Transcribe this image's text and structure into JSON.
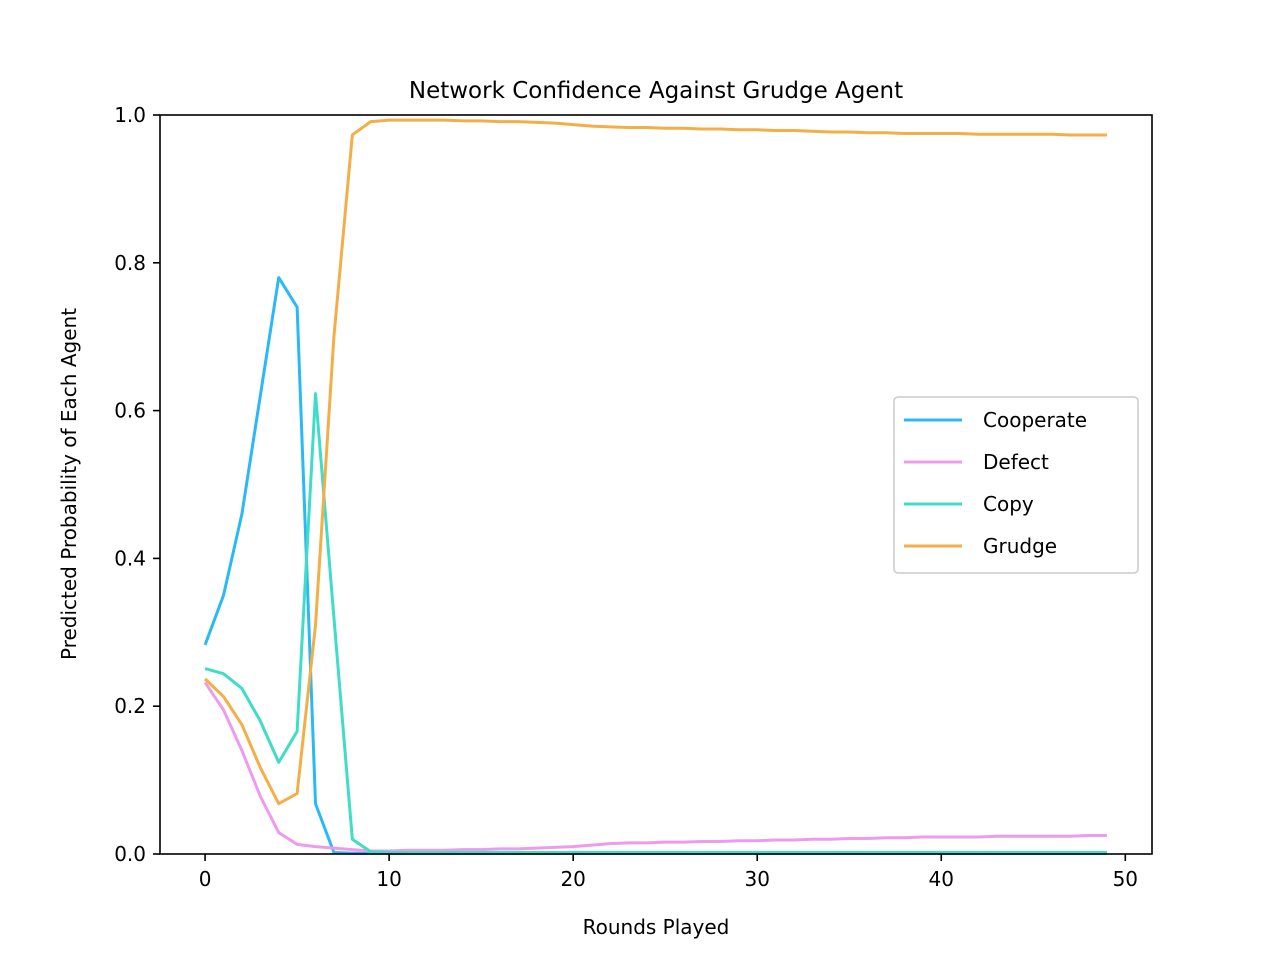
{
  "chart_data": {
    "type": "line",
    "title": "Network Confidence Against Grudge Agent",
    "xlabel": "Rounds Played",
    "ylabel": "Predicted Probability of Each Agent",
    "xlim": [
      -2.45,
      51.45
    ],
    "ylim": [
      0.0,
      1.0
    ],
    "xticks": [
      0,
      10,
      20,
      30,
      40,
      50
    ],
    "xtick_labels": [
      "0",
      "10",
      "20",
      "30",
      "40",
      "50"
    ],
    "yticks": [
      0.0,
      0.2,
      0.4,
      0.6,
      0.8,
      1.0
    ],
    "ytick_labels": [
      "0.0",
      "0.2",
      "0.4",
      "0.6",
      "0.8",
      "1.0"
    ],
    "grid": false,
    "legend_position": "center-right",
    "x": [
      0,
      1,
      2,
      3,
      4,
      5,
      6,
      7,
      8,
      9,
      10,
      11,
      12,
      13,
      14,
      15,
      16,
      17,
      18,
      19,
      20,
      21,
      22,
      23,
      24,
      25,
      26,
      27,
      28,
      29,
      30,
      31,
      32,
      33,
      34,
      35,
      36,
      37,
      38,
      39,
      40,
      41,
      42,
      43,
      44,
      45,
      46,
      47,
      48,
      49
    ],
    "series": [
      {
        "name": "Cooperate",
        "color": "#29b9f5",
        "values": [
          0.283,
          0.35,
          0.46,
          0.62,
          0.78,
          0.74,
          0.068,
          0.002,
          0.001,
          0.001,
          0.001,
          0.001,
          0.001,
          0.001,
          0.001,
          0.001,
          0.001,
          0.001,
          0.001,
          0.001,
          0.001,
          0.001,
          0.001,
          0.001,
          0.001,
          0.001,
          0.001,
          0.001,
          0.001,
          0.001,
          0.001,
          0.001,
          0.001,
          0.001,
          0.001,
          0.001,
          0.001,
          0.001,
          0.001,
          0.001,
          0.001,
          0.001,
          0.001,
          0.001,
          0.001,
          0.001,
          0.001,
          0.001,
          0.001,
          0.001
        ]
      },
      {
        "name": "Defect",
        "color": "#ee9bee",
        "values": [
          0.232,
          0.195,
          0.14,
          0.078,
          0.029,
          0.013,
          0.01,
          0.008,
          0.006,
          0.004,
          0.004,
          0.005,
          0.005,
          0.005,
          0.006,
          0.006,
          0.007,
          0.007,
          0.008,
          0.009,
          0.01,
          0.012,
          0.014,
          0.015,
          0.015,
          0.016,
          0.016,
          0.017,
          0.017,
          0.018,
          0.018,
          0.019,
          0.019,
          0.02,
          0.02,
          0.021,
          0.021,
          0.022,
          0.022,
          0.023,
          0.023,
          0.023,
          0.023,
          0.024,
          0.024,
          0.024,
          0.024,
          0.024,
          0.025,
          0.025
        ]
      },
      {
        "name": "Copy",
        "color": "#40dcc8",
        "values": [
          0.251,
          0.244,
          0.224,
          0.18,
          0.124,
          0.166,
          0.623,
          0.32,
          0.02,
          0.003,
          0.002,
          0.002,
          0.002,
          0.002,
          0.002,
          0.002,
          0.002,
          0.002,
          0.002,
          0.002,
          0.002,
          0.002,
          0.002,
          0.002,
          0.002,
          0.002,
          0.002,
          0.002,
          0.002,
          0.002,
          0.002,
          0.002,
          0.002,
          0.002,
          0.002,
          0.002,
          0.002,
          0.002,
          0.002,
          0.002,
          0.002,
          0.002,
          0.002,
          0.002,
          0.002,
          0.002,
          0.002,
          0.002,
          0.002,
          0.002
        ]
      },
      {
        "name": "Grudge",
        "color": "#f4ae48",
        "values": [
          0.237,
          0.213,
          0.175,
          0.117,
          0.068,
          0.082,
          0.31,
          0.7,
          0.973,
          0.991,
          0.993,
          0.993,
          0.993,
          0.993,
          0.992,
          0.992,
          0.991,
          0.991,
          0.99,
          0.989,
          0.987,
          0.985,
          0.984,
          0.983,
          0.983,
          0.982,
          0.982,
          0.981,
          0.981,
          0.98,
          0.98,
          0.979,
          0.979,
          0.978,
          0.977,
          0.977,
          0.976,
          0.976,
          0.975,
          0.975,
          0.975,
          0.975,
          0.974,
          0.974,
          0.974,
          0.974,
          0.974,
          0.973,
          0.973,
          0.973
        ]
      }
    ]
  }
}
